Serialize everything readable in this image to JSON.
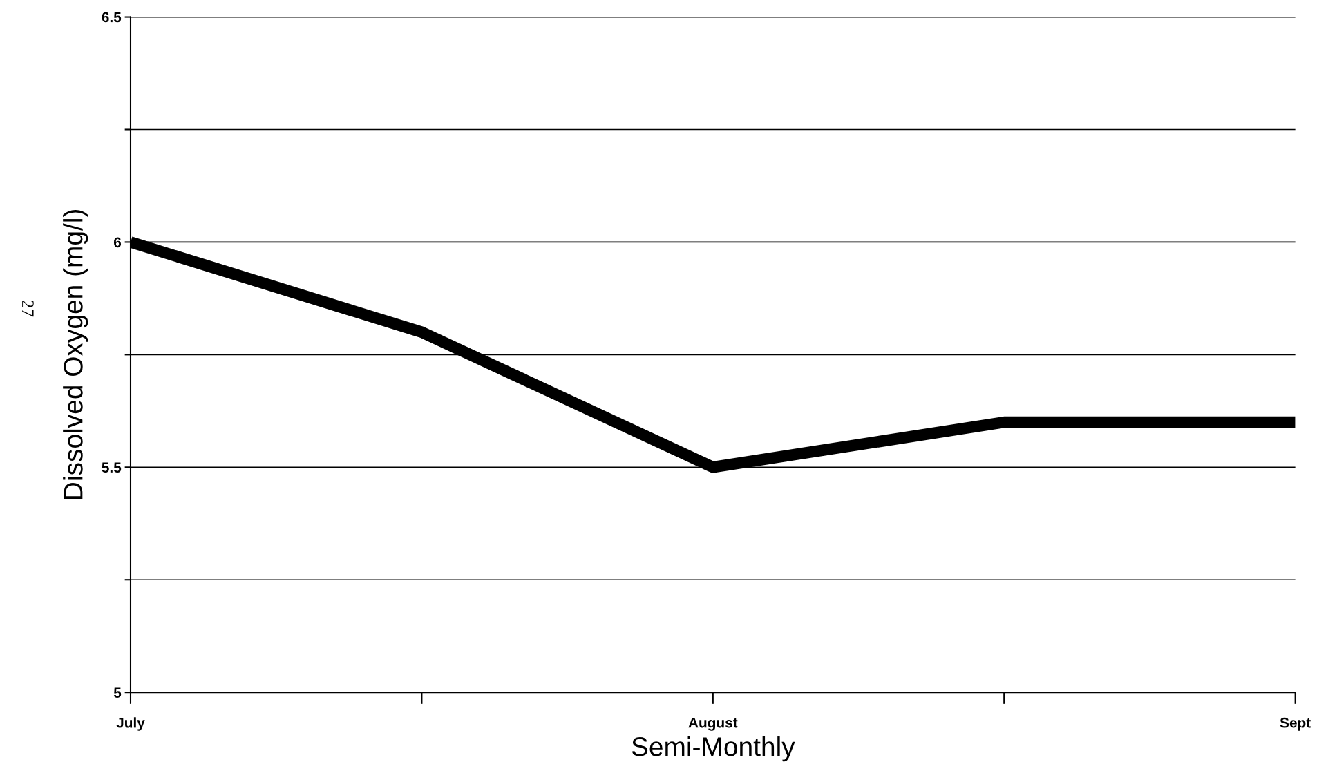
{
  "chart_data": {
    "type": "line",
    "xlabel": "Semi-Monthly",
    "ylabel": "Dissolved Oxygen (mg/l)",
    "categories": [
      "July",
      null,
      "August",
      null,
      "Sept"
    ],
    "series": [
      {
        "color": "#000000",
        "values": [
          6.0,
          5.8,
          5.5,
          5.6,
          5.6
        ]
      }
    ],
    "ylim": [
      5,
      6.5
    ],
    "yticks": [
      5,
      {
        "value": 5.25,
        "label": null
      },
      5.5,
      {
        "value": 5.75,
        "label": null
      },
      6,
      {
        "value": 6.25,
        "label": null
      },
      6.5
    ],
    "grid": "y",
    "legend": false,
    "marker": "none",
    "line_style": "solid",
    "annotations": [
      "27"
    ]
  }
}
